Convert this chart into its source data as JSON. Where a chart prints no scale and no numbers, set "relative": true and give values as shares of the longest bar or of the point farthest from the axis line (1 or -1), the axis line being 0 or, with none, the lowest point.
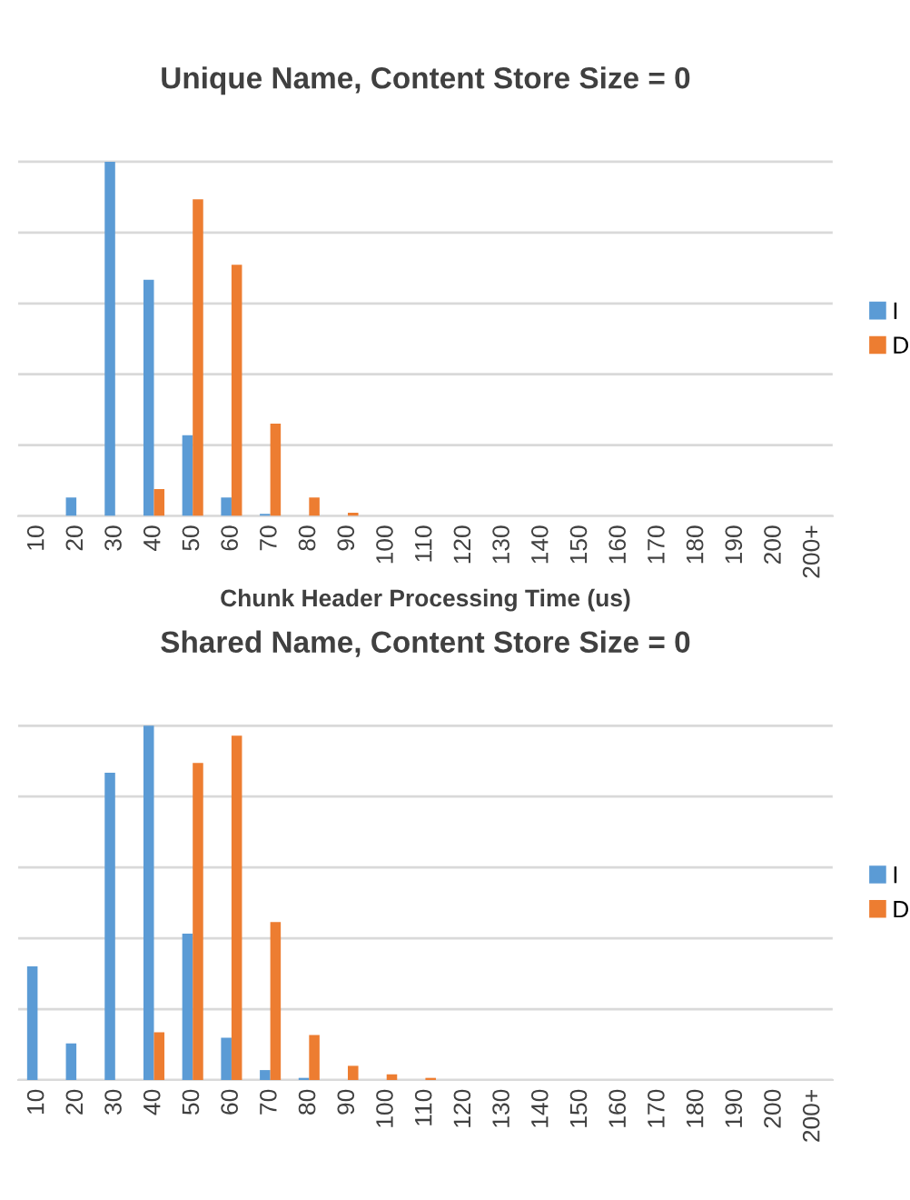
{
  "chart_data": [
    {
      "type": "bar",
      "title": "Unique Name, Content Store Size = 0",
      "xlabel": "Chunk Header Processing Time (us)",
      "relative": true,
      "grid": "y",
      "legend": "right",
      "tick_labels": "x",
      "categories": [
        "10",
        "20",
        "30",
        "40",
        "50",
        "60",
        "70",
        "80",
        "90",
        "100",
        "110",
        "120",
        "130",
        "140",
        "150",
        "160",
        "170",
        "180",
        "190",
        "200",
        "200+"
      ],
      "series": [
        {
          "name": "I",
          "color": "#5b9bd5",
          "values": [
            0,
            0.052,
            1,
            0.667,
            0.228,
            0.052,
            0.006,
            0,
            0,
            0,
            0,
            0,
            0,
            0,
            0,
            0,
            0,
            0,
            0,
            0,
            0
          ]
        },
        {
          "name": "D",
          "color": "#ed7d31",
          "values": [
            0,
            0,
            0,
            0.076,
            0.894,
            0.709,
            0.261,
            0.052,
            0.009,
            0,
            0,
            0,
            0,
            0,
            0,
            0,
            0,
            0,
            0,
            0,
            0
          ]
        }
      ]
    },
    {
      "type": "bar",
      "title": "Shared Name, Content Store Size = 0",
      "relative": true,
      "grid": "y",
      "legend": "right",
      "tick_labels": "x",
      "categories": [
        "10",
        "20",
        "30",
        "40",
        "50",
        "60",
        "70",
        "80",
        "90",
        "100",
        "110",
        "120",
        "130",
        "140",
        "150",
        "160",
        "170",
        "180",
        "190",
        "200",
        "200+"
      ],
      "series": [
        {
          "name": "I",
          "color": "#5b9bd5",
          "values": [
            0.321,
            0.103,
            0.867,
            1,
            0.413,
            0.119,
            0.028,
            0.006,
            0,
            0,
            0,
            0,
            0,
            0,
            0,
            0,
            0,
            0,
            0,
            0,
            0
          ]
        },
        {
          "name": "D",
          "color": "#ed7d31",
          "values": [
            0,
            0,
            0,
            0.135,
            0.895,
            0.972,
            0.446,
            0.127,
            0.04,
            0.016,
            0.006,
            0,
            0,
            0,
            0,
            0,
            0,
            0,
            0,
            0,
            0
          ]
        }
      ]
    }
  ]
}
